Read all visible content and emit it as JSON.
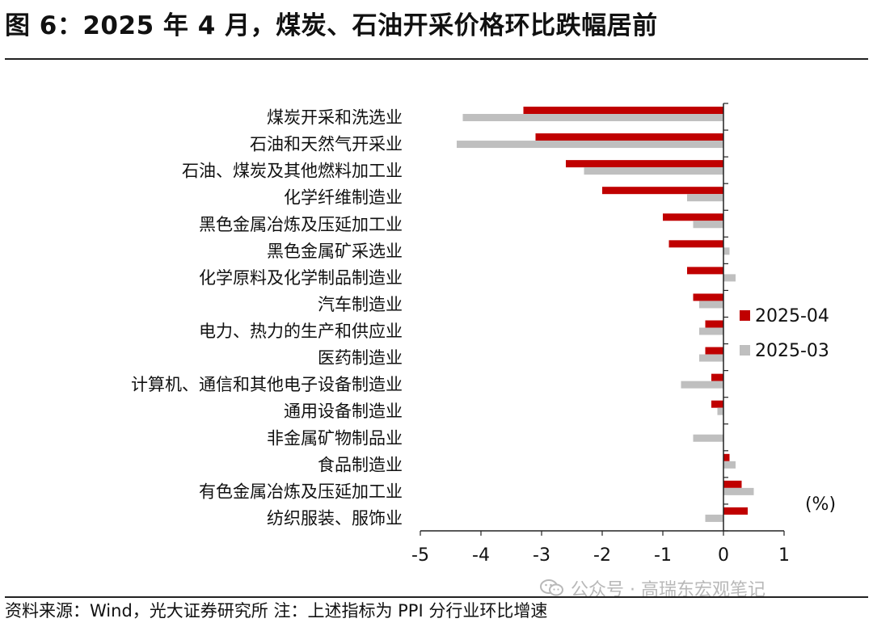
{
  "figure": {
    "title": "图 6：2025 年 4 月，煤炭、石油开采价格环比跌幅居前",
    "source_note": "资料来源：Wind，光大证券研究所 注：上述指标为 PPI 分行业环比增速",
    "watermark": "公众号 · 高瑞东宏观笔记",
    "watermark_icon": "wechat-icon"
  },
  "chart_data": {
    "type": "bar",
    "orientation": "horizontal",
    "categories": [
      "煤炭开采和洗选业",
      "石油和天然气开采业",
      "石油、煤炭及其他燃料加工业",
      "化学纤维制造业",
      "黑色金属冶炼及压延加工业",
      "黑色金属矿采选业",
      "化学原料及化学制品制造业",
      "汽车制造业",
      "电力、热力的生产和供应业",
      "医药制造业",
      "计算机、通信和其他电子设备制造业",
      "通用设备制造业",
      "非金属矿物制品业",
      "食品制造业",
      "有色金属冶炼及压延加工业",
      "纺织服装、服饰业"
    ],
    "series": [
      {
        "name": "2025-04",
        "color": "#c00000",
        "values": [
          -3.3,
          -3.1,
          -2.6,
          -2.0,
          -1.0,
          -0.9,
          -0.6,
          -0.5,
          -0.3,
          -0.3,
          -0.2,
          -0.2,
          0.0,
          0.1,
          0.3,
          0.4
        ]
      },
      {
        "name": "2025-03",
        "color": "#bfbfbf",
        "values": [
          -4.3,
          -4.4,
          -2.3,
          -0.6,
          -0.5,
          0.1,
          0.2,
          -0.4,
          -0.4,
          -0.4,
          -0.7,
          -0.1,
          -0.5,
          0.2,
          0.5,
          -0.3
        ]
      }
    ],
    "xlim": [
      -5,
      1
    ],
    "xticks": [
      -5,
      -4,
      -3,
      -2,
      -1,
      0,
      1
    ],
    "xlabel": "",
    "ylabel": "",
    "unit_label": "(%)",
    "grid": false,
    "legend_position": "right"
  }
}
